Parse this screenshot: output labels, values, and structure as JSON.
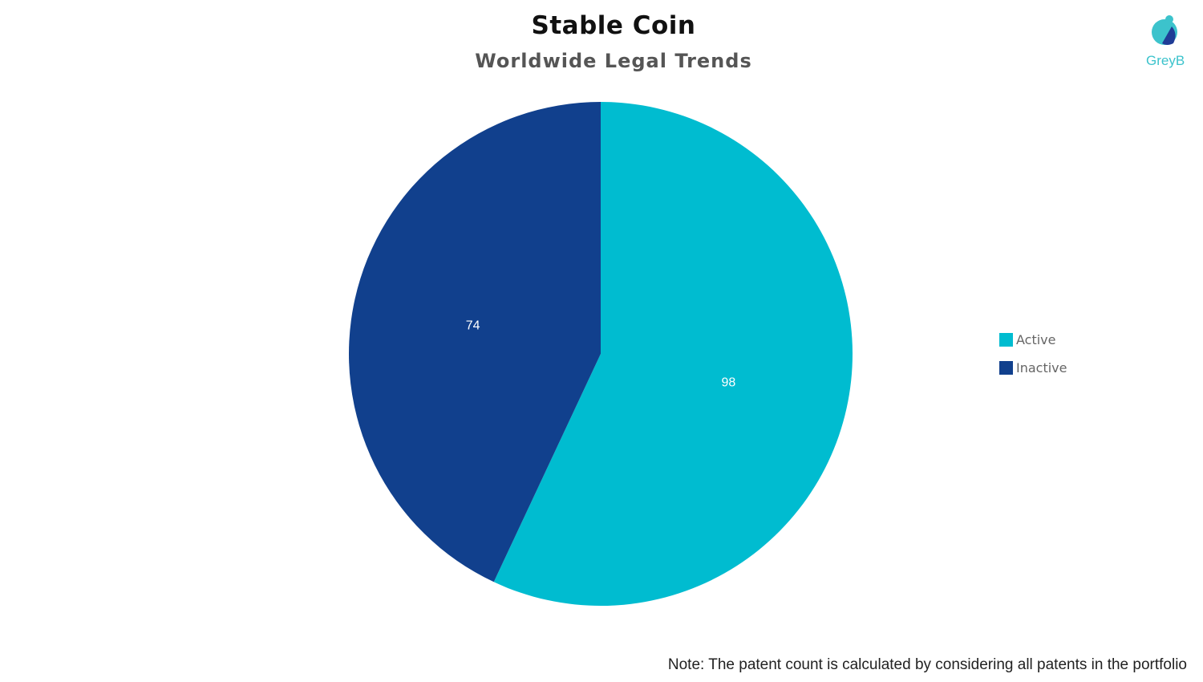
{
  "chart_data": {
    "type": "pie",
    "title": "Stable Coin",
    "subtitle": "Worldwide Legal Trends",
    "categories": [
      "Active",
      "Inactive"
    ],
    "values": [
      98,
      74
    ],
    "colors": [
      "#00bcd0",
      "#11408d"
    ],
    "start_angle": "top, clockwise",
    "legend_position": "right",
    "note": "Note: The patent count is calculated by considering all patents in the portfolio"
  },
  "logo": {
    "text": "GreyB",
    "color": "#3cc3cc"
  }
}
